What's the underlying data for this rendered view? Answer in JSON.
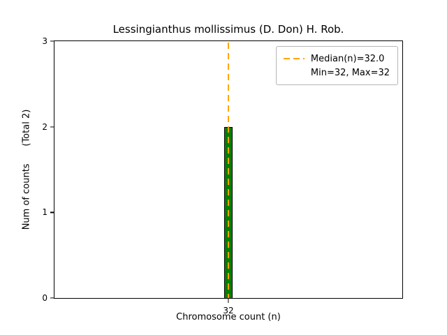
{
  "chart_data": {
    "type": "bar",
    "title": "Lessingianthus mollissimus (D. Don) H. Rob.",
    "xlabel": "Chromosome count (n)",
    "ylabel": "Num of counts      (Total 2)",
    "categories": [
      "32"
    ],
    "values": [
      2
    ],
    "ylim": [
      0,
      3
    ],
    "yticks": [
      0,
      1,
      2,
      3
    ],
    "bar_color": "#008000",
    "bar_edge_color": "#000000",
    "median_line": {
      "value": 32,
      "color": "#FFA500",
      "style": "dashed"
    },
    "grid": false,
    "legend": {
      "position": "upper right",
      "entries": [
        {
          "label": "Median(n)=32.0",
          "marker": "dashed-line",
          "color": "#FFA500"
        },
        {
          "label": "Min=32, Max=32",
          "marker": "none"
        }
      ]
    }
  }
}
